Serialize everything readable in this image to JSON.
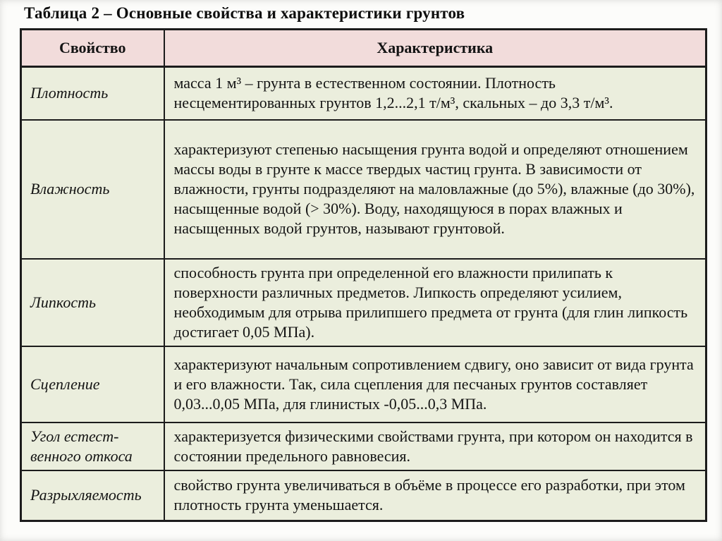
{
  "page": {
    "title": "Таблица 2 – Основные свойства и характеристики грунтов"
  },
  "table": {
    "headers": {
      "property": "Свойство",
      "characteristic": "Характеристика"
    },
    "rows": [
      {
        "property": "Плотность",
        "characteristic": "масса 1 м³ – грунта в естественном состоянии. Плотность несцементированных грунтов 1,2...2,1 т/м³, скальных – до 3,3 т/м³."
      },
      {
        "property": "Влажность",
        "characteristic": "характеризуют степенью насыщения грунта водой и определяют отношением массы воды в грунте к массе твердых частиц грунта. В зависимости от влажности, грунты подразделяют на маловлажные (до 5%), влажные (до 30%), насыщенные водой (> 30%). Воду, находящуюся в порах влажных и насыщенных водой грунтов, называют грунтовой."
      },
      {
        "property": "Липкость",
        "characteristic": "способность грунта при определенной его влажности прилипать к поверхности различных предметов. Липкость определяют усилием, необходимым для отрыва прилипшего предмета от грунта (для глин липкость достигает 0,05 МПа)."
      },
      {
        "property": "Сцепление",
        "characteristic": "характеризуют начальным сопротивлением сдвигу, оно зависит от вида грунта и его влажности. Так, сила сцепления для песчаных грунтов составляет 0,03...0,05 МПа, для глинистых -0,05...0,3 МПа."
      },
      {
        "property": "Угол естест-\nвенного откоса",
        "characteristic": "характеризуется физическими свойствами грунта, при котором он находится в состоянии предельного равновесия."
      },
      {
        "property": "Разрыхляемость",
        "characteristic": "свойство грунта увеличиваться в объёме в процессе его разработки, при этом плотность грунта уменьшается."
      }
    ],
    "colors": {
      "header_bg": "#f2dcdb",
      "body_bg": "#ebeedd",
      "border": "#1c1c1c"
    }
  }
}
